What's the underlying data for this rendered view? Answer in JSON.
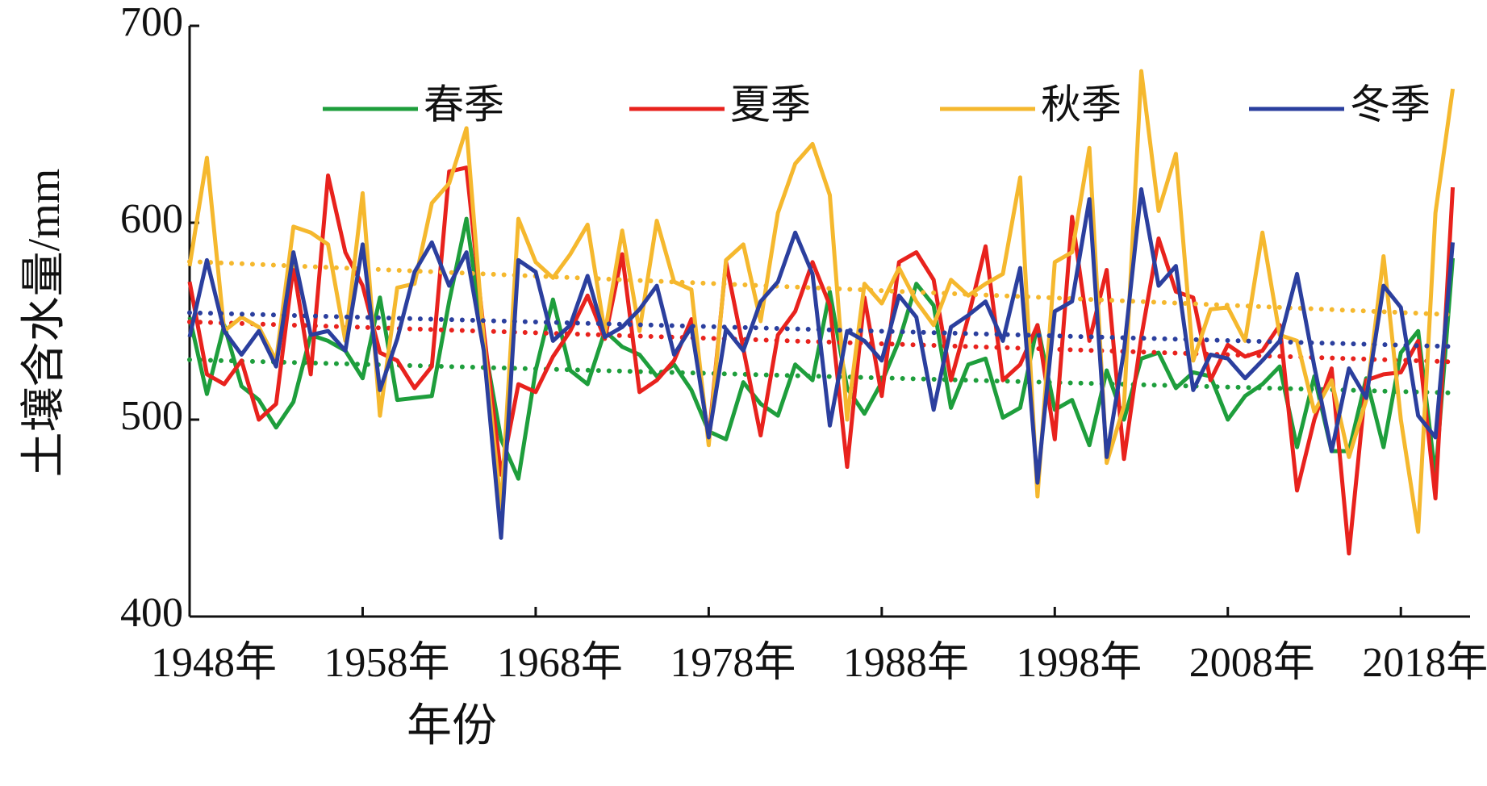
{
  "chart_data": {
    "type": "line",
    "xlabel": "年份",
    "ylabel": "土壤含水量/mm",
    "x": [
      1948,
      1949,
      1950,
      1951,
      1952,
      1953,
      1954,
      1955,
      1956,
      1957,
      1958,
      1959,
      1960,
      1961,
      1962,
      1963,
      1964,
      1965,
      1966,
      1967,
      1968,
      1969,
      1970,
      1971,
      1972,
      1973,
      1974,
      1975,
      1976,
      1977,
      1978,
      1979,
      1980,
      1981,
      1982,
      1983,
      1984,
      1985,
      1986,
      1987,
      1988,
      1989,
      1990,
      1991,
      1992,
      1993,
      1994,
      1995,
      1996,
      1997,
      1998,
      1999,
      2000,
      2001,
      2002,
      2003,
      2004,
      2005,
      2006,
      2007,
      2008,
      2009,
      2010,
      2011,
      2012,
      2013,
      2014,
      2015,
      2016,
      2017,
      2018,
      2019,
      2020,
      2021
    ],
    "series": [
      {
        "name": "春季",
        "color": "#1e9e3c",
        "values": [
          552,
          513,
          548,
          517,
          510,
          496,
          509,
          543,
          540,
          535,
          521,
          562,
          510,
          511,
          512,
          560,
          602,
          540,
          490,
          470,
          525,
          561,
          525,
          518,
          545,
          537,
          533,
          522,
          528,
          515,
          494,
          490,
          519,
          508,
          502,
          528,
          520,
          565,
          516,
          503,
          519,
          540,
          569,
          558,
          506,
          528,
          531,
          501,
          506,
          548,
          505,
          510,
          487,
          525,
          500,
          531,
          534,
          516,
          524,
          522,
          500,
          512,
          518,
          527,
          486,
          522,
          484,
          484,
          521,
          486,
          534,
          545,
          471,
          582
        ]
      },
      {
        "name": "夏季",
        "color": "#e8221d",
        "values": [
          570,
          523,
          518,
          530,
          500,
          508,
          578,
          523,
          624,
          585,
          568,
          534,
          530,
          516,
          527,
          626,
          628,
          545,
          472,
          518,
          514,
          532,
          545,
          563,
          541,
          584,
          514,
          520,
          530,
          551,
          490,
          580,
          536,
          492,
          543,
          555,
          580,
          558,
          476,
          562,
          512,
          580,
          585,
          571,
          520,
          552,
          588,
          520,
          528,
          548,
          490,
          603,
          540,
          576,
          480,
          542,
          592,
          565,
          562,
          520,
          538,
          532,
          535,
          548,
          464,
          500,
          526,
          432,
          520,
          523,
          524,
          540,
          460,
          618
        ]
      },
      {
        "name": "秋季",
        "color": "#f5b82e",
        "values": [
          578,
          633,
          545,
          552,
          547,
          530,
          598,
          595,
          589,
          540,
          615,
          502,
          567,
          569,
          610,
          620,
          648,
          540,
          455,
          602,
          580,
          572,
          584,
          599,
          544,
          596,
          545,
          601,
          570,
          566,
          487,
          581,
          589,
          550,
          605,
          630,
          640,
          614,
          500,
          569,
          559,
          577,
          560,
          548,
          571,
          563,
          569,
          574,
          623,
          461,
          580,
          585,
          638,
          478,
          507,
          677,
          606,
          635,
          530,
          556,
          557,
          540,
          595,
          543,
          540,
          504,
          520,
          481,
          510,
          583,
          500,
          443,
          605,
          668
        ]
      },
      {
        "name": "冬季",
        "color": "#2b3f9e",
        "values": [
          542,
          581,
          545,
          533,
          545,
          527,
          585,
          543,
          545,
          535,
          589,
          515,
          541,
          575,
          590,
          568,
          585,
          535,
          440,
          581,
          575,
          540,
          548,
          573,
          542,
          547,
          556,
          568,
          533,
          547,
          491,
          546,
          535,
          560,
          570,
          595,
          574,
          497,
          545,
          540,
          530,
          563,
          552,
          505,
          547,
          553,
          560,
          540,
          577,
          468,
          555,
          560,
          612,
          481,
          535,
          617,
          568,
          578,
          515,
          533,
          531,
          521,
          530,
          540,
          574,
          527,
          484,
          526,
          511,
          568,
          557,
          502,
          491,
          590
        ]
      }
    ],
    "xlim": [
      1948,
      2022
    ],
    "xticks": [
      {
        "value": 1948,
        "label": "1948年"
      },
      {
        "value": 1958,
        "label": "1958年"
      },
      {
        "value": 1968,
        "label": "1968年"
      },
      {
        "value": 1978,
        "label": "1978年"
      },
      {
        "value": 1988,
        "label": "1988年"
      },
      {
        "value": 1998,
        "label": "1998年"
      },
      {
        "value": 2008,
        "label": "2008年"
      },
      {
        "value": 2018,
        "label": "2018年"
      }
    ],
    "ylim": [
      400,
      700
    ],
    "yticks": [
      400,
      500,
      600,
      700
    ],
    "trendline": true,
    "legend": "top"
  }
}
